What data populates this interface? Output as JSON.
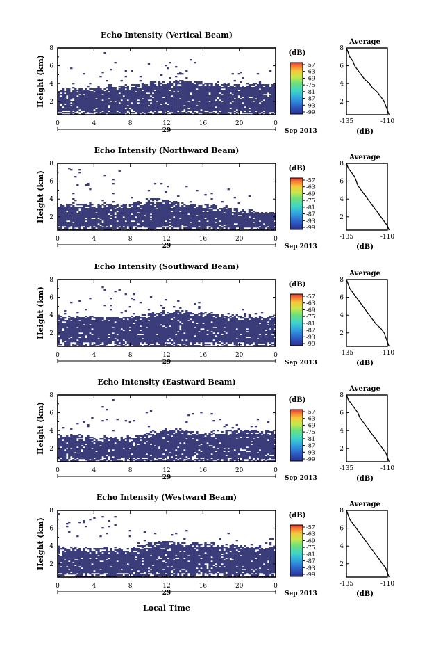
{
  "chart_data": [
    {
      "type": "heatmap",
      "title": "Echo Intensity (Vertical Beam)",
      "ylabel": "Height (km)",
      "x_ticks": [
        "0",
        "4",
        "8",
        "12",
        "16",
        "20",
        "0"
      ],
      "y_ticks": [
        "2",
        "4",
        "6",
        "8"
      ],
      "date_label": "29",
      "month_label": "Sep 2013",
      "colorbar": {
        "unit": "(dB)",
        "ticks": [
          "-57",
          "-63",
          "-69",
          "-75",
          "-81",
          "-87",
          "-93",
          "-99"
        ]
      },
      "echo_top_km": [
        6.5,
        6.3,
        6.2,
        7.0,
        7.4,
        7.6,
        7.1,
        6.6,
        6.4,
        6.3,
        6.4,
        6.6,
        6.8,
        7.0,
        7.2,
        7.1,
        6.9,
        6.7,
        6.5,
        6.3,
        6.1,
        5.9,
        5.7,
        5.6,
        5.5
      ],
      "layer_top_km": [
        3.3,
        3.4,
        3.5,
        3.6,
        3.6,
        3.7,
        3.8,
        3.8,
        3.9,
        4.0,
        4.1,
        4.2,
        4.2,
        4.3,
        4.3,
        4.2,
        4.2,
        4.1,
        4.1,
        4.0,
        4.1,
        4.1,
        4.1,
        4.0,
        4.0
      ],
      "average_profile": {
        "title": "Average",
        "xlabel": "(dB)",
        "x_ticks": [
          "-135",
          "-110"
        ],
        "y_ticks": [
          "2",
          "4",
          "6",
          "8"
        ],
        "height_km": [
          8.0,
          7.5,
          7.0,
          6.5,
          6.0,
          5.5,
          5.0,
          4.5,
          4.0,
          3.5,
          3.0,
          2.5,
          2.0,
          1.5,
          1.0,
          0.5
        ],
        "db": [
          -135,
          -134,
          -133,
          -131,
          -130,
          -128,
          -126,
          -124,
          -121,
          -119,
          -116,
          -114,
          -112,
          -111,
          -110,
          -109
        ]
      }
    },
    {
      "type": "heatmap",
      "title": "Echo Intensity (Northward Beam)",
      "ylabel": "Height (km)",
      "x_ticks": [
        "0",
        "4",
        "8",
        "12",
        "16",
        "20",
        "0"
      ],
      "y_ticks": [
        "2",
        "4",
        "6",
        "8"
      ],
      "date_label": "29",
      "month_label": "Sep 2013",
      "colorbar": {
        "unit": "(dB)",
        "ticks": [
          "-57",
          "-63",
          "-69",
          "-75",
          "-81",
          "-87",
          "-93",
          "-99"
        ]
      },
      "echo_top_km": [
        7.8,
        7.7,
        7.6,
        7.2,
        6.8,
        7.5,
        7.9,
        7.2,
        6.6,
        6.4,
        6.2,
        6.0,
        5.9,
        5.8,
        5.6,
        5.5,
        5.4,
        5.3,
        5.3,
        5.2,
        5.0,
        4.9,
        4.8,
        4.7,
        4.6
      ],
      "layer_top_km": [
        3.4,
        3.4,
        3.5,
        3.5,
        3.4,
        3.4,
        3.3,
        3.4,
        3.5,
        3.7,
        3.9,
        4.0,
        3.8,
        3.7,
        3.6,
        3.5,
        3.4,
        3.3,
        3.3,
        3.0,
        2.9,
        2.8,
        2.7,
        2.6,
        2.6
      ],
      "average_profile": {
        "title": "Average",
        "xlabel": "(dB)",
        "x_ticks": [
          "-135",
          "-110"
        ],
        "y_ticks": [
          "2",
          "4",
          "6",
          "8"
        ],
        "height_km": [
          8.0,
          7.5,
          7.0,
          6.5,
          6.0,
          5.5,
          5.0,
          4.5,
          4.0,
          3.5,
          3.0,
          2.5,
          2.0,
          1.5,
          1.0,
          0.5
        ],
        "db": [
          -135,
          -134,
          -132,
          -130,
          -129,
          -128,
          -126,
          -124,
          -122,
          -120,
          -118,
          -116,
          -114,
          -112,
          -110,
          -109
        ]
      }
    },
    {
      "type": "heatmap",
      "title": "Echo Intensity (Southward Beam)",
      "ylabel": "Height (km)",
      "x_ticks": [
        "0",
        "4",
        "8",
        "12",
        "16",
        "20",
        "0"
      ],
      "y_ticks": [
        "2",
        "4",
        "6",
        "8"
      ],
      "date_label": "29",
      "month_label": "Sep 2013",
      "colorbar": {
        "unit": "(dB)",
        "ticks": [
          "-57",
          "-63",
          "-69",
          "-75",
          "-81",
          "-87",
          "-93",
          "-99"
        ]
      },
      "echo_top_km": [
        7.6,
        7.8,
        7.9,
        7.9,
        7.7,
        7.5,
        7.2,
        7.0,
        6.8,
        6.6,
        6.3,
        6.0,
        5.8,
        5.7,
        5.6,
        5.5,
        5.4,
        5.3,
        5.2,
        5.1,
        5.0,
        4.9,
        4.8,
        4.7,
        4.6
      ],
      "layer_top_km": [
        3.8,
        3.8,
        3.9,
        3.9,
        3.8,
        3.8,
        3.7,
        3.7,
        3.8,
        4.0,
        4.2,
        4.4,
        4.4,
        4.5,
        4.5,
        4.4,
        4.3,
        4.2,
        4.1,
        4.1,
        4.0,
        4.0,
        4.0,
        3.9,
        3.9
      ],
      "average_profile": {
        "title": "Average",
        "xlabel": "(dB)",
        "x_ticks": [
          "-135",
          "-110"
        ],
        "y_ticks": [
          "2",
          "4",
          "6",
          "8"
        ],
        "height_km": [
          8.0,
          7.5,
          7.0,
          6.5,
          6.0,
          5.5,
          5.0,
          4.5,
          4.0,
          3.5,
          3.0,
          2.5,
          2.0,
          1.5,
          1.0,
          0.5
        ],
        "db": [
          -135,
          -134,
          -133,
          -131,
          -129,
          -127,
          -125,
          -123,
          -121,
          -119,
          -117,
          -114,
          -112,
          -111,
          -110,
          -109
        ]
      }
    },
    {
      "type": "heatmap",
      "title": "Echo Intensity (Eastward Beam)",
      "ylabel": "Height (km)",
      "x_ticks": [
        "0",
        "4",
        "8",
        "12",
        "16",
        "20",
        "0"
      ],
      "y_ticks": [
        "2",
        "4",
        "6",
        "8"
      ],
      "date_label": "29",
      "month_label": "Sep 2013",
      "colorbar": {
        "unit": "(dB)",
        "ticks": [
          "-57",
          "-63",
          "-69",
          "-75",
          "-81",
          "-87",
          "-93",
          "-99"
        ]
      },
      "echo_top_km": [
        5.2,
        5.3,
        5.5,
        6.0,
        6.8,
        7.4,
        7.6,
        7.2,
        6.9,
        6.6,
        6.3,
        6.0,
        5.9,
        5.8,
        5.9,
        6.0,
        6.1,
        6.2,
        6.2,
        6.1,
        6.0,
        5.9,
        5.8,
        5.8,
        5.7
      ],
      "layer_top_km": [
        3.5,
        3.5,
        3.4,
        3.3,
        3.3,
        3.3,
        3.2,
        3.3,
        3.4,
        3.6,
        3.9,
        4.1,
        4.2,
        4.2,
        4.1,
        4.0,
        3.9,
        3.9,
        4.0,
        4.1,
        4.2,
        4.1,
        4.0,
        4.0,
        3.9
      ],
      "average_profile": {
        "title": "Average",
        "xlabel": "(dB)",
        "x_ticks": [
          "-135",
          "-110"
        ],
        "y_ticks": [
          "2",
          "4",
          "6",
          "8"
        ],
        "height_km": [
          8.0,
          7.5,
          7.0,
          6.5,
          6.0,
          5.5,
          5.0,
          4.5,
          4.0,
          3.5,
          3.0,
          2.5,
          2.0,
          1.5,
          1.0,
          0.5
        ],
        "db": [
          -135,
          -134,
          -132,
          -130,
          -128,
          -127,
          -125,
          -123,
          -121,
          -119,
          -117,
          -115,
          -113,
          -111,
          -110,
          -109
        ]
      }
    },
    {
      "type": "heatmap",
      "title": "Echo Intensity (Westward Beam)",
      "ylabel": "Height (km)",
      "x_ticks": [
        "0",
        "4",
        "8",
        "12",
        "16",
        "20",
        "0"
      ],
      "y_ticks": [
        "2",
        "4",
        "6",
        "8"
      ],
      "date_label": "29",
      "month_label": "Sep 2013",
      "xlabel": "Local Time",
      "colorbar": {
        "unit": "(dB)",
        "ticks": [
          "-57",
          "-63",
          "-69",
          "-75",
          "-81",
          "-87",
          "-93",
          "-99"
        ]
      },
      "echo_top_km": [
        7.8,
        7.8,
        7.9,
        7.9,
        7.8,
        7.6,
        7.4,
        7.2,
        7.0,
        6.8,
        6.6,
        6.4,
        6.2,
        6.1,
        6.0,
        5.9,
        5.8,
        5.7,
        5.6,
        5.5,
        5.4,
        5.3,
        5.2,
        5.1,
        5.0
      ],
      "layer_top_km": [
        3.8,
        3.8,
        3.9,
        3.9,
        3.8,
        3.8,
        3.7,
        3.8,
        3.9,
        4.1,
        4.3,
        4.4,
        4.5,
        4.5,
        4.4,
        4.4,
        4.3,
        4.3,
        4.2,
        4.2,
        4.1,
        4.1,
        4.0,
        4.0,
        4.0
      ],
      "average_profile": {
        "title": "Average",
        "xlabel": "(dB)",
        "x_ticks": [
          "-135",
          "-110"
        ],
        "y_ticks": [
          "2",
          "4",
          "6",
          "8"
        ],
        "height_km": [
          8.0,
          7.5,
          7.0,
          6.5,
          6.0,
          5.5,
          5.0,
          4.5,
          4.0,
          3.5,
          3.0,
          2.5,
          2.0,
          1.5,
          1.0,
          0.5
        ],
        "db": [
          -135,
          -134,
          -133,
          -131,
          -129,
          -127,
          -125,
          -123,
          -121,
          -119,
          -117,
          -115,
          -113,
          -111,
          -110,
          -109
        ]
      }
    }
  ],
  "colors": {
    "echo": "#3a3d7a",
    "colorbar": [
      "#2b2f8f",
      "#2d5fc8",
      "#2fa0e0",
      "#3ed6c8",
      "#6fe07a",
      "#c8e84a",
      "#f5c83a",
      "#f57a32",
      "#e8322e"
    ]
  }
}
